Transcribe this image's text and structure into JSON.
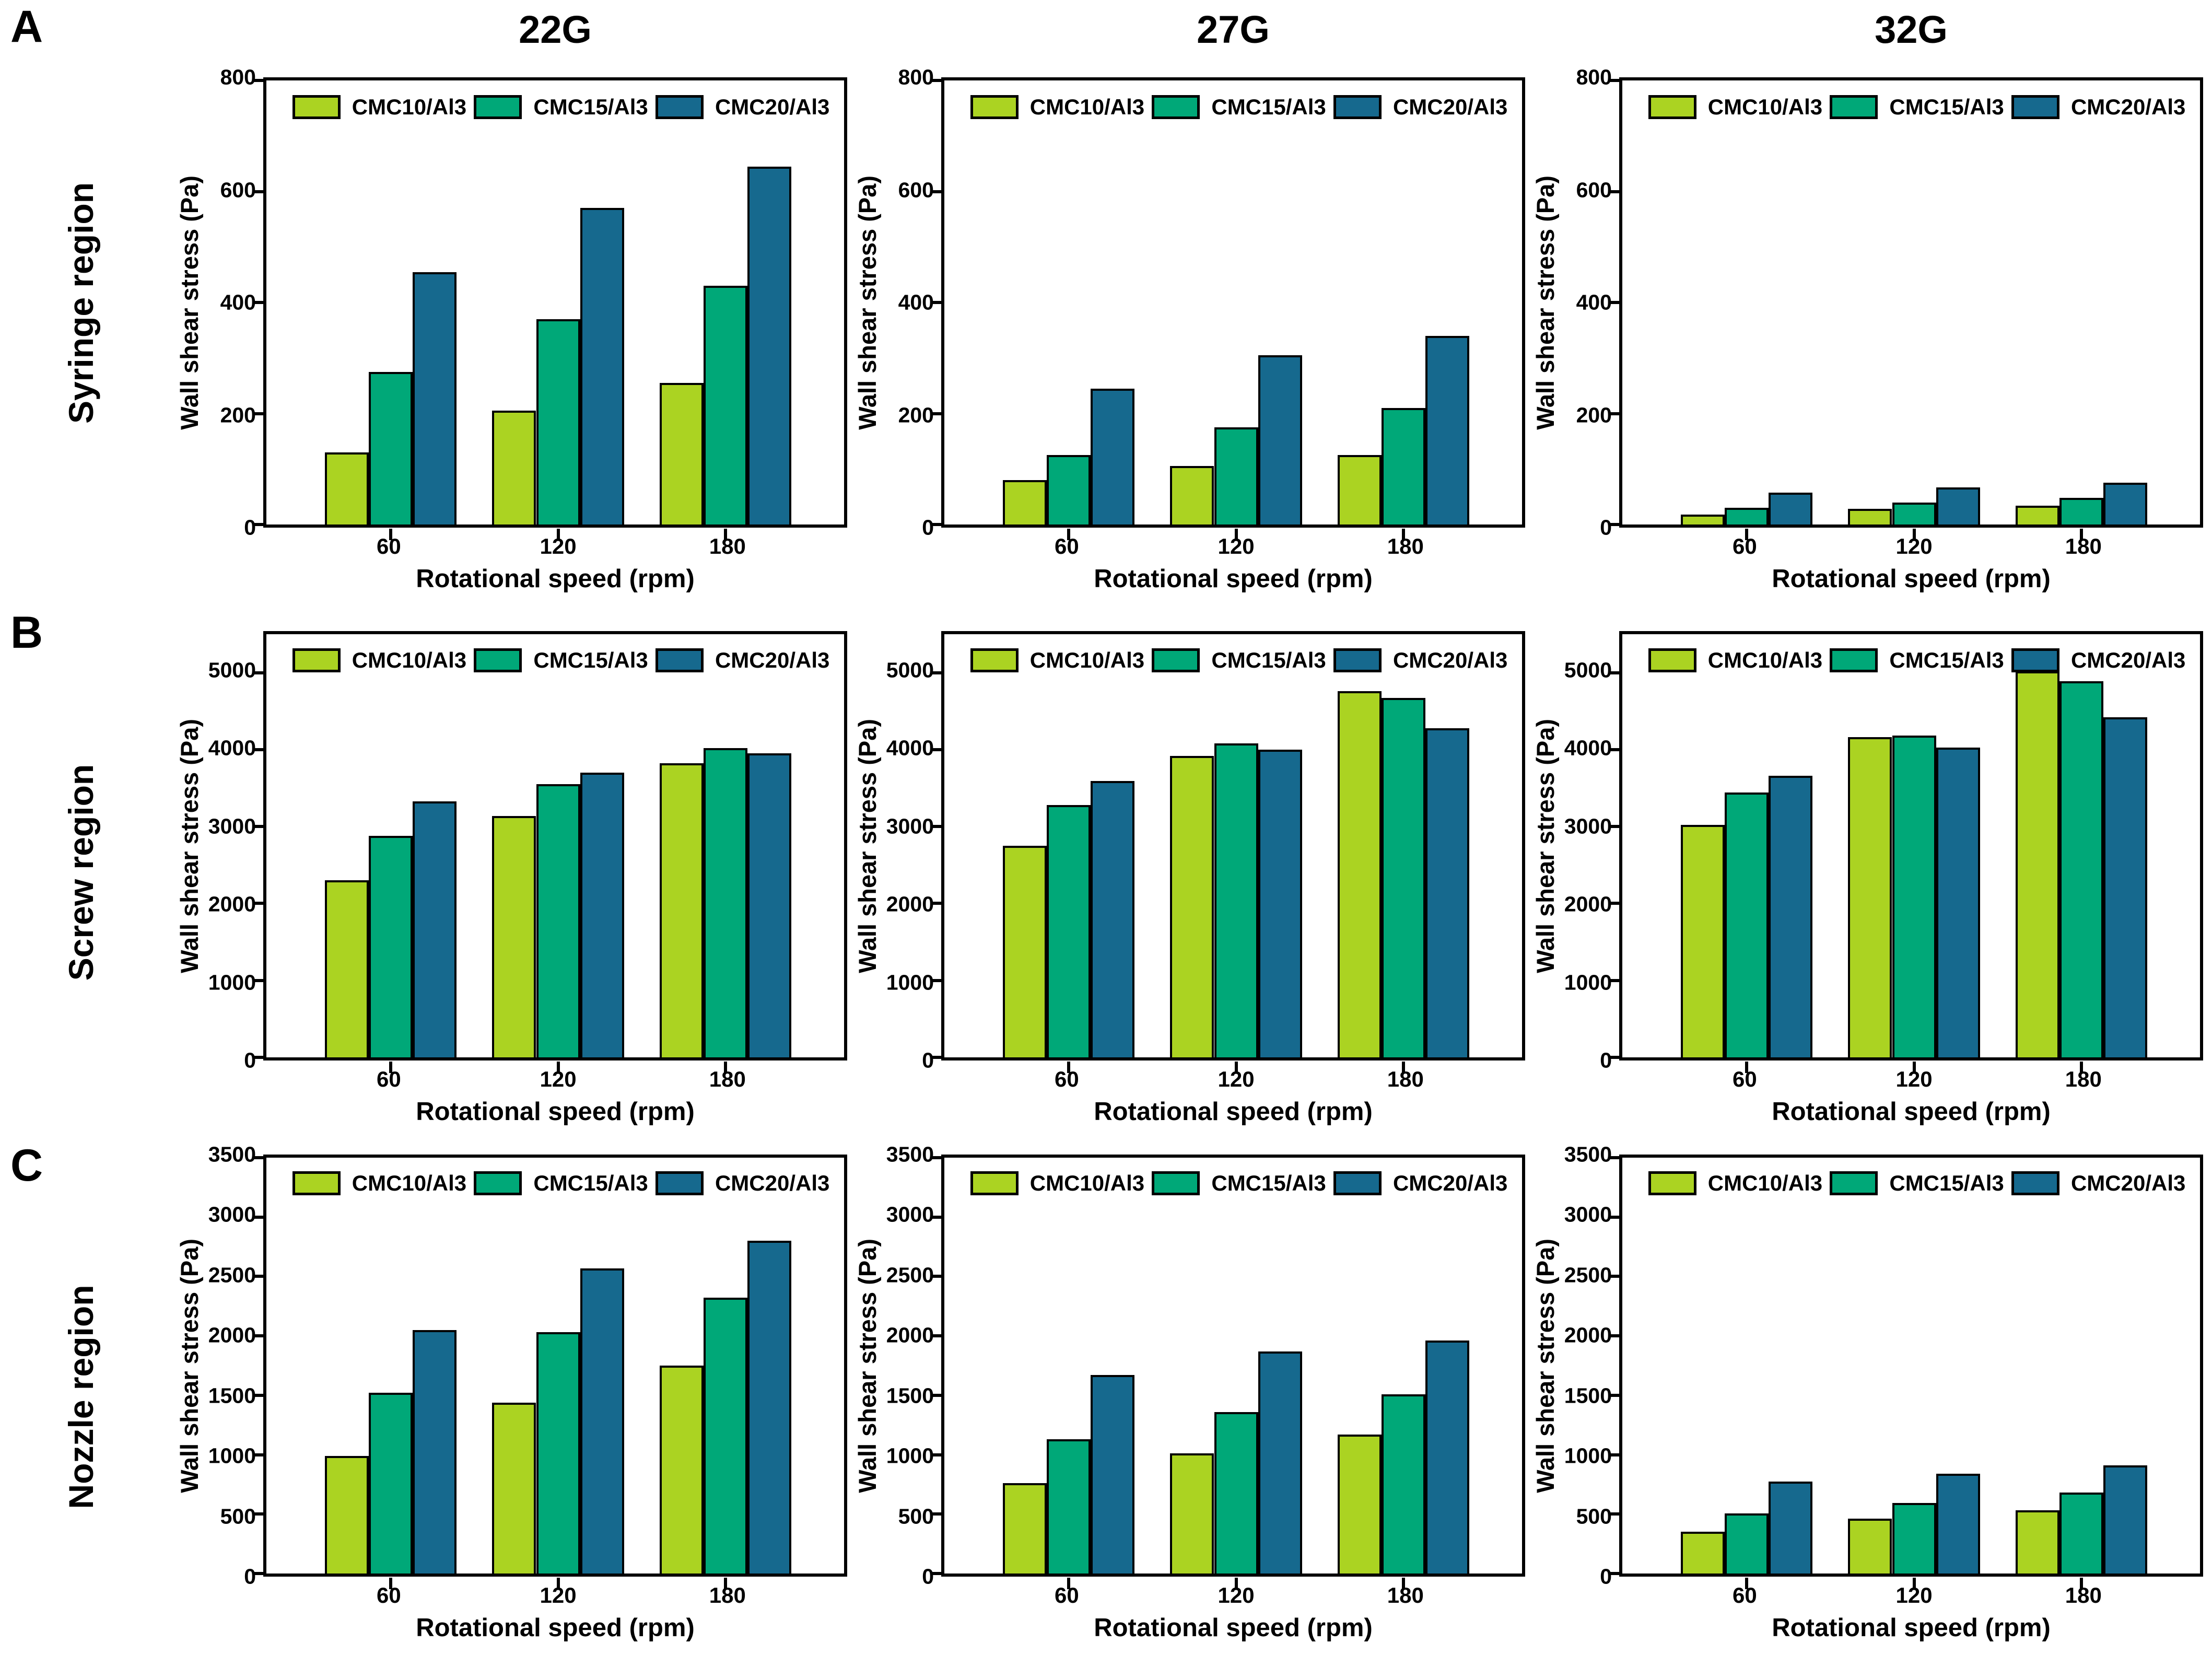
{
  "figure": {
    "rows": [
      {
        "letter": "A",
        "label": "Syringe region"
      },
      {
        "letter": "B",
        "label": "Screw region"
      },
      {
        "letter": "C",
        "label": "Nozzle region"
      }
    ],
    "col_titles": [
      "22G",
      "27G",
      "32G"
    ],
    "xlabel": "Rotational speed (rpm)",
    "ylabel": "Wall shear stress (Pa)",
    "categories": [
      "60",
      "120",
      "180"
    ],
    "series": [
      {
        "name": "CMC10/Al3",
        "color": "#abd322"
      },
      {
        "name": "CMC15/Al3",
        "color": "#00a878"
      },
      {
        "name": "CMC20/Al3",
        "color": "#16698e"
      }
    ],
    "bar_edge_color": "#000000",
    "legend_position": "top-inside"
  },
  "chart_data": [
    {
      "type": "bar",
      "row": 0,
      "col": 0,
      "title": "22G",
      "region": "Syringe region",
      "xlabel": "Rotational speed (rpm)",
      "ylabel": "Wall shear stress (Pa)",
      "categories": [
        "60",
        "120",
        "180"
      ],
      "ylim": [
        0,
        800
      ],
      "yticks": [
        0,
        200,
        400,
        600,
        800
      ],
      "series": [
        {
          "name": "CMC10/Al3",
          "values": [
            130,
            205,
            255
          ]
        },
        {
          "name": "CMC15/Al3",
          "values": [
            275,
            370,
            430
          ]
        },
        {
          "name": "CMC20/Al3",
          "values": [
            455,
            570,
            645
          ]
        }
      ]
    },
    {
      "type": "bar",
      "row": 0,
      "col": 1,
      "title": "27G",
      "region": "Syringe region",
      "xlabel": "Rotational speed (rpm)",
      "ylabel": "Wall shear stress (Pa)",
      "categories": [
        "60",
        "120",
        "180"
      ],
      "ylim": [
        0,
        800
      ],
      "yticks": [
        0,
        200,
        400,
        600,
        800
      ],
      "series": [
        {
          "name": "CMC10/Al3",
          "values": [
            80,
            105,
            125
          ]
        },
        {
          "name": "CMC15/Al3",
          "values": [
            125,
            175,
            210
          ]
        },
        {
          "name": "CMC20/Al3",
          "values": [
            245,
            305,
            340
          ]
        }
      ]
    },
    {
      "type": "bar",
      "row": 0,
      "col": 2,
      "title": "32G",
      "region": "Syringe region",
      "xlabel": "Rotational speed (rpm)",
      "ylabel": "Wall shear stress (Pa)",
      "categories": [
        "60",
        "120",
        "180"
      ],
      "ylim": [
        0,
        800
      ],
      "yticks": [
        0,
        200,
        400,
        600,
        800
      ],
      "series": [
        {
          "name": "CMC10/Al3",
          "values": [
            18,
            28,
            34
          ]
        },
        {
          "name": "CMC15/Al3",
          "values": [
            30,
            40,
            48
          ]
        },
        {
          "name": "CMC20/Al3",
          "values": [
            57,
            67,
            75
          ]
        }
      ]
    },
    {
      "type": "bar",
      "row": 1,
      "col": 0,
      "title": "",
      "region": "Screw region",
      "xlabel": "Rotational speed (rpm)",
      "ylabel": "Wall shear stress (Pa)",
      "categories": [
        "60",
        "120",
        "180"
      ],
      "ylim": [
        0,
        5500
      ],
      "yticks": [
        0,
        1000,
        2000,
        3000,
        4000,
        5000
      ],
      "series": [
        {
          "name": "CMC10/Al3",
          "values": [
            2300,
            3140,
            3820
          ]
        },
        {
          "name": "CMC15/Al3",
          "values": [
            2880,
            3550,
            4020
          ]
        },
        {
          "name": "CMC20/Al3",
          "values": [
            3330,
            3700,
            3950
          ]
        }
      ]
    },
    {
      "type": "bar",
      "row": 1,
      "col": 1,
      "title": "",
      "region": "Screw region",
      "xlabel": "Rotational speed (rpm)",
      "ylabel": "Wall shear stress (Pa)",
      "categories": [
        "60",
        "120",
        "180"
      ],
      "ylim": [
        0,
        5500
      ],
      "yticks": [
        0,
        1000,
        2000,
        3000,
        4000,
        5000
      ],
      "series": [
        {
          "name": "CMC10/Al3",
          "values": [
            2750,
            3920,
            4760
          ]
        },
        {
          "name": "CMC15/Al3",
          "values": [
            3280,
            4080,
            4670
          ]
        },
        {
          "name": "CMC20/Al3",
          "values": [
            3590,
            4000,
            4280
          ]
        }
      ]
    },
    {
      "type": "bar",
      "row": 1,
      "col": 2,
      "title": "",
      "region": "Screw region",
      "xlabel": "Rotational speed (rpm)",
      "ylabel": "Wall shear stress (Pa)",
      "categories": [
        "60",
        "120",
        "180"
      ],
      "ylim": [
        0,
        5500
      ],
      "yticks": [
        0,
        1000,
        2000,
        3000,
        4000,
        5000
      ],
      "series": [
        {
          "name": "CMC10/Al3",
          "values": [
            3020,
            4160,
            5020
          ]
        },
        {
          "name": "CMC15/Al3",
          "values": [
            3440,
            4180,
            4890
          ]
        },
        {
          "name": "CMC20/Al3",
          "values": [
            3660,
            4030,
            4420
          ]
        }
      ]
    },
    {
      "type": "bar",
      "row": 2,
      "col": 0,
      "title": "",
      "region": "Nozzle region",
      "xlabel": "Rotational speed (rpm)",
      "ylabel": "Wall shear stress (Pa)",
      "categories": [
        "60",
        "120",
        "180"
      ],
      "ylim": [
        0,
        3500
      ],
      "yticks": [
        0,
        500,
        1000,
        1500,
        2000,
        2500,
        3000,
        3500
      ],
      "series": [
        {
          "name": "CMC10/Al3",
          "values": [
            990,
            1440,
            1750
          ]
        },
        {
          "name": "CMC15/Al3",
          "values": [
            1520,
            2030,
            2320
          ]
        },
        {
          "name": "CMC20/Al3",
          "values": [
            2050,
            2570,
            2800
          ]
        }
      ]
    },
    {
      "type": "bar",
      "row": 2,
      "col": 1,
      "title": "",
      "region": "Nozzle region",
      "xlabel": "Rotational speed (rpm)",
      "ylabel": "Wall shear stress (Pa)",
      "categories": [
        "60",
        "120",
        "180"
      ],
      "ylim": [
        0,
        3500
      ],
      "yticks": [
        0,
        500,
        1000,
        1500,
        2000,
        2500,
        3000,
        3500
      ],
      "series": [
        {
          "name": "CMC10/Al3",
          "values": [
            760,
            1010,
            1170
          ]
        },
        {
          "name": "CMC15/Al3",
          "values": [
            1130,
            1360,
            1510
          ]
        },
        {
          "name": "CMC20/Al3",
          "values": [
            1670,
            1870,
            1960
          ]
        }
      ]
    },
    {
      "type": "bar",
      "row": 2,
      "col": 2,
      "title": "",
      "region": "Nozzle region",
      "xlabel": "Rotational speed (rpm)",
      "ylabel": "Wall shear stress (Pa)",
      "categories": [
        "60",
        "120",
        "180"
      ],
      "ylim": [
        0,
        3500
      ],
      "yticks": [
        0,
        500,
        1000,
        1500,
        2000,
        2500,
        3000,
        3500
      ],
      "series": [
        {
          "name": "CMC10/Al3",
          "values": [
            350,
            460,
            530
          ]
        },
        {
          "name": "CMC15/Al3",
          "values": [
            505,
            595,
            680
          ]
        },
        {
          "name": "CMC20/Al3",
          "values": [
            775,
            840,
            910
          ]
        }
      ]
    }
  ]
}
